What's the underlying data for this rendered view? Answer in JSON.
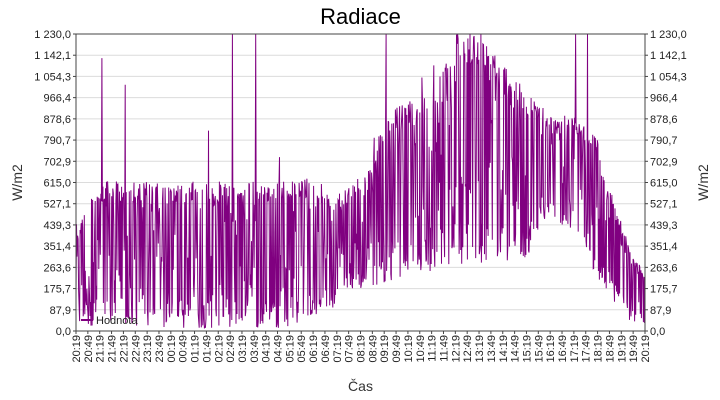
{
  "chart_data": {
    "type": "line",
    "title": "Radiace",
    "xlabel": "Čas",
    "ylabel_left": "W/m2",
    "ylabel_right": "W/m2",
    "y_ticks": [
      "0,0",
      "87,9",
      "175,7",
      "263,6",
      "351,4",
      "439,3",
      "527,1",
      "615,0",
      "702,9",
      "790,7",
      "878,6",
      "966,4",
      "1 054,3",
      "1 142,1",
      "1 230,0"
    ],
    "ylim": [
      0,
      1230
    ],
    "x_ticks": [
      "20:19",
      "20:49",
      "21:19",
      "21:49",
      "22:19",
      "22:49",
      "23:19",
      "23:49",
      "00:19",
      "00:49",
      "01:19",
      "01:49",
      "02:19",
      "02:49",
      "03:19",
      "03:49",
      "04:19",
      "04:49",
      "05:19",
      "05:49",
      "06:19",
      "06:49",
      "07:19",
      "07:49",
      "08:19",
      "08:49",
      "09:19",
      "09:49",
      "10:19",
      "10:49",
      "11:19",
      "11:49",
      "12:19",
      "12:49",
      "13:19",
      "13:49",
      "14:19",
      "14:49",
      "15:19",
      "15:49",
      "16:19",
      "16:49",
      "17:19",
      "17:49",
      "18:19",
      "18:49",
      "19:19",
      "19:49",
      "20:19"
    ],
    "grid": true,
    "series": [
      {
        "name": "Hodnota",
        "color": "#800080",
        "envelope": [
          {
            "time": "20:19",
            "min": 20,
            "max": 440
          },
          {
            "time": "21:19",
            "min": 20,
            "max": 620
          },
          {
            "time": "22:19",
            "min": 15,
            "max": 620
          },
          {
            "time": "23:19",
            "min": 10,
            "max": 620
          },
          {
            "time": "00:19",
            "min": 10,
            "max": 600
          },
          {
            "time": "01:19",
            "min": 10,
            "max": 620
          },
          {
            "time": "02:19",
            "min": 10,
            "max": 620
          },
          {
            "time": "03:19",
            "min": 10,
            "max": 620
          },
          {
            "time": "04:19",
            "min": 10,
            "max": 620
          },
          {
            "time": "05:19",
            "min": 15,
            "max": 620
          },
          {
            "time": "06:19",
            "min": 40,
            "max": 640
          },
          {
            "time": "07:19",
            "min": 100,
            "max": 560
          },
          {
            "time": "07:49",
            "min": 150,
            "max": 600
          },
          {
            "time": "08:19",
            "min": 170,
            "max": 650
          },
          {
            "time": "08:49",
            "min": 180,
            "max": 700
          },
          {
            "time": "09:19",
            "min": 200,
            "max": 900
          },
          {
            "time": "10:19",
            "min": 220,
            "max": 950
          },
          {
            "time": "11:19",
            "min": 250,
            "max": 1000
          },
          {
            "time": "12:19",
            "min": 270,
            "max": 1230
          },
          {
            "time": "13:19",
            "min": 280,
            "max": 1230
          },
          {
            "time": "14:19",
            "min": 290,
            "max": 1100
          },
          {
            "time": "15:19",
            "min": 300,
            "max": 1000
          },
          {
            "time": "16:19",
            "min": 480,
            "max": 900
          },
          {
            "time": "17:19",
            "min": 400,
            "max": 900
          },
          {
            "time": "18:19",
            "min": 200,
            "max": 800
          },
          {
            "time": "18:49",
            "min": 150,
            "max": 600
          },
          {
            "time": "19:19",
            "min": 80,
            "max": 450
          },
          {
            "time": "19:49",
            "min": 30,
            "max": 300
          },
          {
            "time": "20:19",
            "min": 20,
            "max": 250
          }
        ],
        "spikes": [
          {
            "time": "21:19",
            "value": 1130
          },
          {
            "time": "22:19",
            "value": 1020
          },
          {
            "time": "01:49",
            "value": 830
          },
          {
            "time": "02:49",
            "value": 1230
          },
          {
            "time": "03:49",
            "value": 1230
          },
          {
            "time": "04:49",
            "value": 720
          },
          {
            "time": "08:49",
            "value": 800
          },
          {
            "time": "09:19",
            "value": 1230
          },
          {
            "time": "10:49",
            "value": 1050
          },
          {
            "time": "11:19",
            "value": 1100
          },
          {
            "time": "12:19",
            "value": 1230
          },
          {
            "time": "13:19",
            "value": 1230
          },
          {
            "time": "17:19",
            "value": 1230
          },
          {
            "time": "17:49",
            "value": 1230
          }
        ]
      }
    ],
    "legend": {
      "entry": "Hodnota"
    }
  }
}
